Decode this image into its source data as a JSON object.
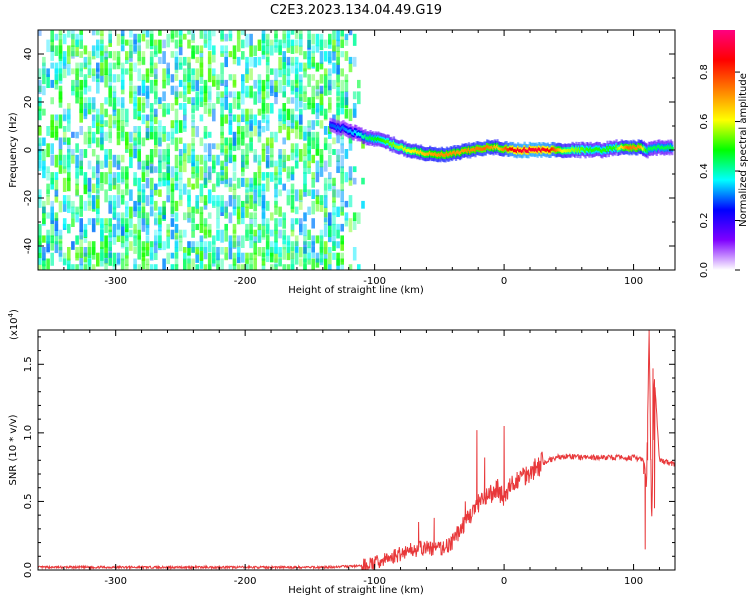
{
  "figure_title": "C2E3.2023.134.04.49.G19",
  "chart_data": [
    {
      "type": "heatmap",
      "title": "C2E3.2023.134.04.49.G19",
      "xlabel": "Height of straight line (km)",
      "ylabel": "Frequency (Hz)",
      "xlim": [
        -360,
        132
      ],
      "ylim": [
        -50,
        50
      ],
      "x_ticks": [
        -300,
        -200,
        -100,
        0,
        100
      ],
      "y_ticks": [
        -40,
        -20,
        0,
        20,
        40
      ],
      "colorbar": {
        "label": "Normalized spectral amplitude",
        "range": [
          0.0,
          0.97
        ],
        "ticks": [
          0.0,
          0.2,
          0.4,
          0.6,
          0.8
        ],
        "colors": [
          "#ffffff",
          "#7f00ff",
          "#0000ff",
          "#00ffff",
          "#00ff00",
          "#ffff00",
          "#ff7f00",
          "#ff0000",
          "#ff0080"
        ]
      },
      "noise_region": {
        "x": [
          -360,
          -110
        ],
        "y": [
          -50,
          50
        ],
        "amplitude": [
          0.05,
          0.3
        ]
      },
      "signal_track": [
        {
          "x": -135,
          "freq": 10,
          "amp": 0.28
        },
        {
          "x": -125,
          "freq": 9,
          "amp": 0.3
        },
        {
          "x": -115,
          "freq": 7,
          "amp": 0.35
        },
        {
          "x": -105,
          "freq": 5,
          "amp": 0.45
        },
        {
          "x": -95,
          "freq": 4,
          "amp": 0.5
        },
        {
          "x": -85,
          "freq": 2,
          "amp": 0.55
        },
        {
          "x": -75,
          "freq": 0,
          "amp": 0.6
        },
        {
          "x": -65,
          "freq": -1,
          "amp": 0.65
        },
        {
          "x": -55,
          "freq": -2,
          "amp": 0.7
        },
        {
          "x": -45,
          "freq": -2,
          "amp": 0.72
        },
        {
          "x": -35,
          "freq": -1,
          "amp": 0.7
        },
        {
          "x": -25,
          "freq": 0,
          "amp": 0.72
        },
        {
          "x": -15,
          "freq": 1,
          "amp": 0.75
        },
        {
          "x": -5,
          "freq": 1,
          "amp": 0.65
        },
        {
          "x": 5,
          "freq": 0,
          "amp": 0.85
        },
        {
          "x": 15,
          "freq": 0,
          "amp": 0.9
        },
        {
          "x": 25,
          "freq": 0,
          "amp": 0.9
        },
        {
          "x": 35,
          "freq": 0,
          "amp": 0.85
        },
        {
          "x": 45,
          "freq": 0,
          "amp": 0.6
        },
        {
          "x": 55,
          "freq": 0,
          "amp": 0.55
        },
        {
          "x": 65,
          "freq": 0,
          "amp": 0.5
        },
        {
          "x": 75,
          "freq": 0,
          "amp": 0.5
        },
        {
          "x": 85,
          "freq": 1,
          "amp": 0.5
        },
        {
          "x": 95,
          "freq": 1,
          "amp": 0.75
        },
        {
          "x": 105,
          "freq": 1,
          "amp": 0.7
        },
        {
          "x": 110,
          "freq": 0,
          "amp": 0.45
        },
        {
          "x": 120,
          "freq": 1,
          "amp": 0.45
        },
        {
          "x": 130,
          "freq": 1,
          "amp": 0.45
        }
      ]
    },
    {
      "type": "line",
      "xlabel": "Height of straight line (km)",
      "ylabel": "SNR (10 * v/v)",
      "y_multiplier": "(x10",
      "y_multiplier_exp": "4",
      "y_multiplier_close": ")",
      "xlim": [
        -360,
        132
      ],
      "ylim": [
        0,
        1.75
      ],
      "x_ticks": [
        -300,
        -200,
        -100,
        0,
        100
      ],
      "y_ticks": [
        "0.0",
        "0.5",
        "1.0",
        "1.5"
      ],
      "line_color": "#e8383a",
      "series": [
        {
          "x": [
            -360,
            -300,
            -200,
            -140,
            -110,
            -100,
            -90,
            -80,
            -75,
            -70,
            -60,
            -50,
            -40,
            -35,
            -30,
            -25,
            -20,
            -15,
            -10,
            -5,
            0,
            5,
            10,
            20,
            30,
            40,
            50,
            60,
            70,
            80,
            90,
            100,
            108,
            110,
            112,
            114,
            116,
            120,
            132
          ],
          "values": [
            0.02,
            0.02,
            0.02,
            0.02,
            0.03,
            0.05,
            0.08,
            0.12,
            0.14,
            0.15,
            0.16,
            0.15,
            0.2,
            0.28,
            0.35,
            0.42,
            0.48,
            0.52,
            0.55,
            0.6,
            0.52,
            0.6,
            0.66,
            0.72,
            0.78,
            0.82,
            0.83,
            0.82,
            0.82,
            0.82,
            0.82,
            0.82,
            0.8,
            0.6,
            1.75,
            0.35,
            1.42,
            0.8,
            0.77
          ]
        }
      ],
      "spikes": [
        {
          "x": -66,
          "values": [
            0.18,
            0.35,
            0.18
          ]
        },
        {
          "x": -54,
          "values": [
            0.2,
            0.38,
            0.2
          ]
        },
        {
          "x": -30,
          "values": [
            0.36,
            0.5,
            0.36
          ]
        },
        {
          "x": -21,
          "values": [
            0.42,
            1.02,
            0.42
          ]
        },
        {
          "x": -15,
          "values": [
            0.48,
            0.82,
            0.48
          ]
        },
        {
          "x": 0,
          "values": [
            0.5,
            1.05,
            0.5
          ]
        },
        {
          "x": 109,
          "values": [
            0.7,
            0.15,
            0.7
          ]
        },
        {
          "x": 112,
          "values": [
            0.8,
            1.75,
            0.8
          ]
        },
        {
          "x": 115,
          "values": [
            0.45,
            1.47,
            0.45
          ]
        }
      ]
    }
  ]
}
